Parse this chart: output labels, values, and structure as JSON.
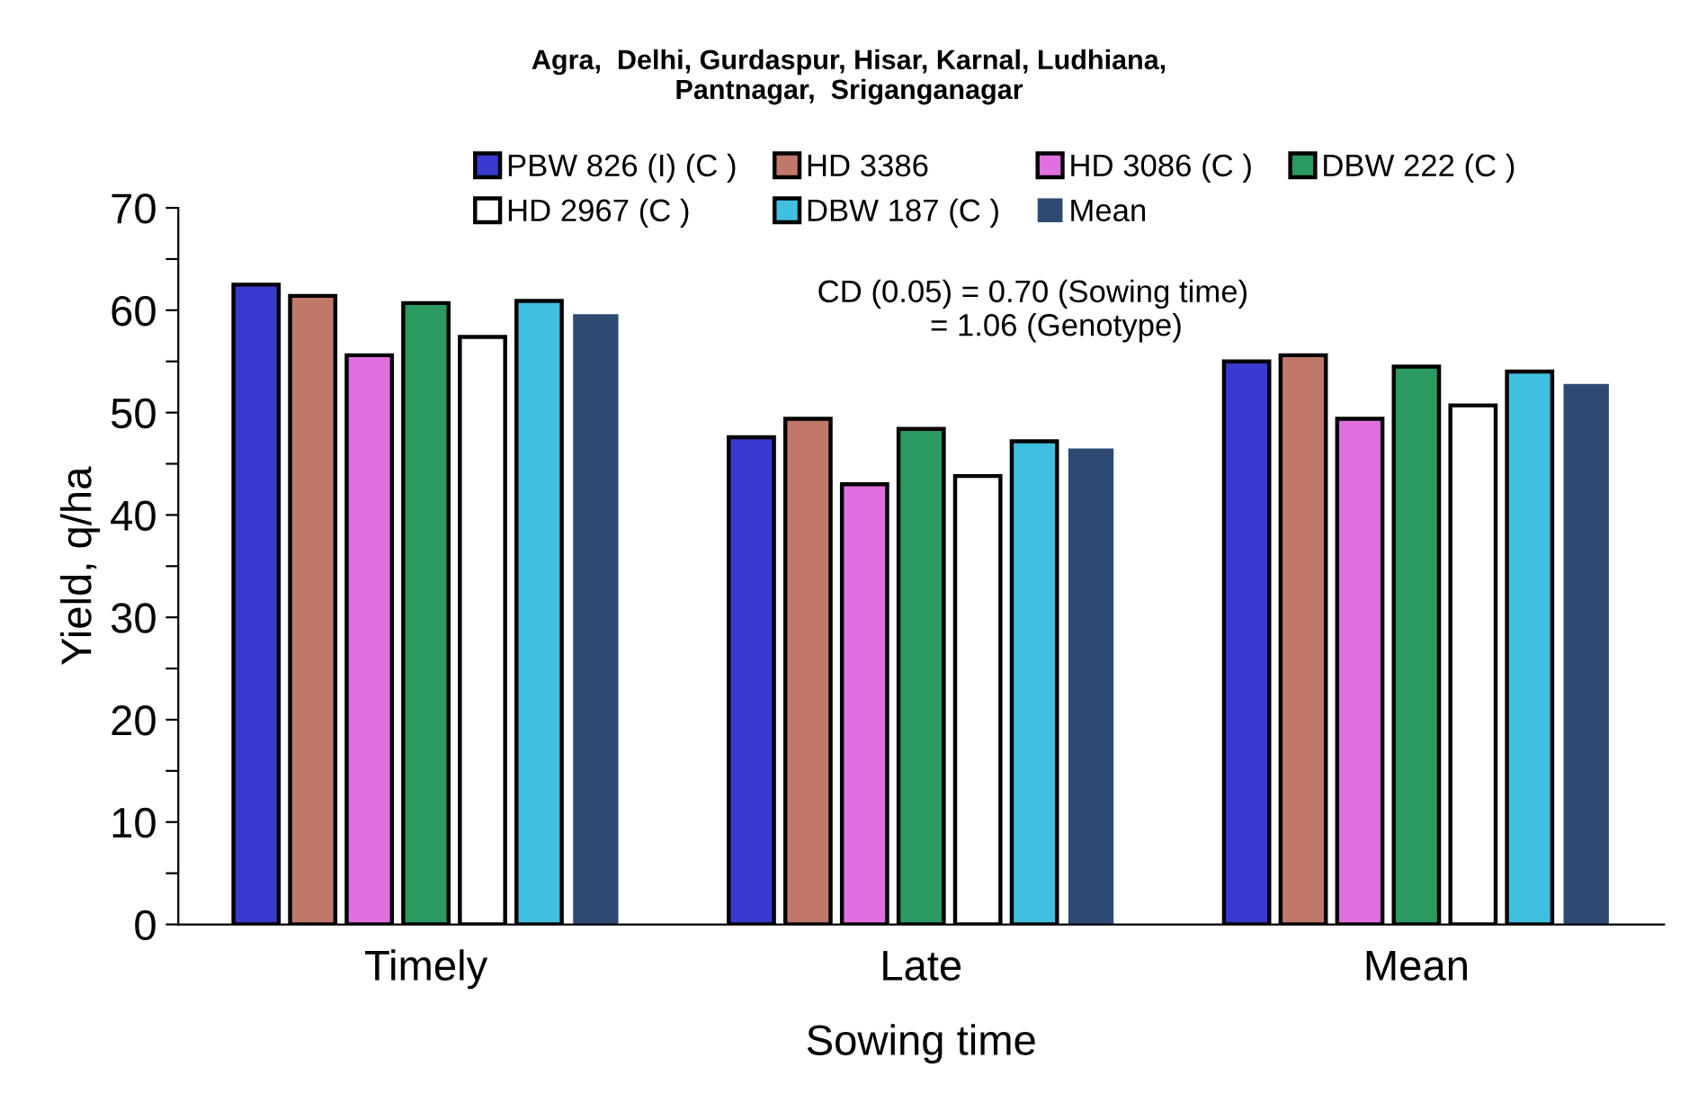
{
  "chart_data": {
    "type": "bar",
    "title": "Agra,  Delhi, Gurdaspur, Hisar, Karnal, Ludhiana,\nPantnagar,  Sriganganagar",
    "xlabel": "Sowing time",
    "ylabel": "Yield, q/ha",
    "categories": [
      "Timely",
      "Late",
      "Mean"
    ],
    "series": [
      {
        "name": "PBW 826 (I) (C )",
        "color": "#3a3ad0",
        "values": [
          62.5,
          47.6,
          55.0
        ]
      },
      {
        "name": "HD 3386",
        "color": "#c07868",
        "values": [
          61.4,
          49.4,
          55.6
        ]
      },
      {
        "name": "HD 3086 (C )",
        "color": "#e070e0",
        "values": [
          55.6,
          43.0,
          49.4
        ]
      },
      {
        "name": "DBW 222 (C )",
        "color": "#2a9a60",
        "values": [
          60.7,
          48.4,
          54.5
        ]
      },
      {
        "name": "HD 2967 (C )",
        "color": "#ffffff",
        "values": [
          57.4,
          43.8,
          50.7
        ]
      },
      {
        "name": "DBW 187 (C )",
        "color": "#40c0e0",
        "values": [
          60.9,
          47.2,
          54.0
        ]
      },
      {
        "name": "Mean",
        "color": "#2e4a73",
        "values": [
          59.6,
          46.5,
          52.8
        ]
      }
    ],
    "ylim": [
      0,
      70
    ],
    "yticks": [
      0,
      {
        "value": 5,
        "label": null
      },
      10,
      {
        "value": 15,
        "label": null
      },
      20,
      {
        "value": 25,
        "label": null
      },
      30,
      {
        "value": 35,
        "label": null
      },
      40,
      {
        "value": 45,
        "label": null
      },
      50,
      {
        "value": 55,
        "label": null
      },
      60,
      {
        "value": 65,
        "label": null
      },
      70
    ],
    "annotations": [
      "CD (0.05) = 0.70 (Sowing time)\n             = 1.06 (Genotype)"
    ],
    "legend": "top",
    "grid": false
  }
}
